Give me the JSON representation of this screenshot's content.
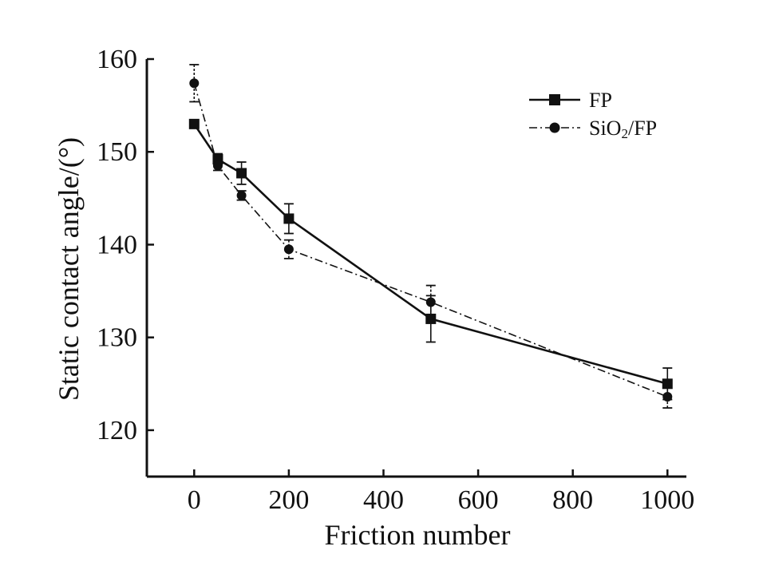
{
  "chart_data": {
    "type": "line",
    "title": "",
    "xlabel": "Friction number",
    "ylabel": "Static contact angle/(°)",
    "xlim": [
      -100,
      1040
    ],
    "ylim": [
      115,
      160
    ],
    "xticks": [
      0,
      200,
      400,
      600,
      800,
      1000
    ],
    "yticks": [
      120,
      130,
      140,
      150,
      160
    ],
    "xtick_labels": [
      "0",
      "200",
      "400",
      "600",
      "800",
      "1000"
    ],
    "ytick_labels": [
      "120",
      "130",
      "140",
      "150",
      "160"
    ],
    "grid": false,
    "legend_position": "top-right",
    "series": [
      {
        "name": "FP",
        "legend_text": "FP",
        "marker": "square",
        "line_style": "solid",
        "color": "#111111",
        "points": [
          {
            "x": 0,
            "y": 153.0,
            "err": 0
          },
          {
            "x": 50,
            "y": 149.2,
            "err": 0.6
          },
          {
            "x": 100,
            "y": 147.7,
            "err": 1.2
          },
          {
            "x": 200,
            "y": 142.8,
            "err": 1.6
          },
          {
            "x": 500,
            "y": 132.0,
            "err": 2.5
          },
          {
            "x": 1000,
            "y": 125.0,
            "err": 1.7
          }
        ]
      },
      {
        "name": "SiO2/FP",
        "legend_text": "SiO",
        "legend_subscript": "2",
        "legend_suffix": "/FP",
        "marker": "circle",
        "line_style": "dashdot",
        "color": "#111111",
        "points": [
          {
            "x": 0,
            "y": 157.4,
            "err": 2.0
          },
          {
            "x": 50,
            "y": 148.5,
            "err": 0.5
          },
          {
            "x": 100,
            "y": 145.3,
            "err": 0.5
          },
          {
            "x": 200,
            "y": 139.5,
            "err": 1.0
          },
          {
            "x": 500,
            "y": 133.8,
            "err": 1.8
          },
          {
            "x": 1000,
            "y": 123.6,
            "err": 1.2
          }
        ]
      }
    ]
  }
}
